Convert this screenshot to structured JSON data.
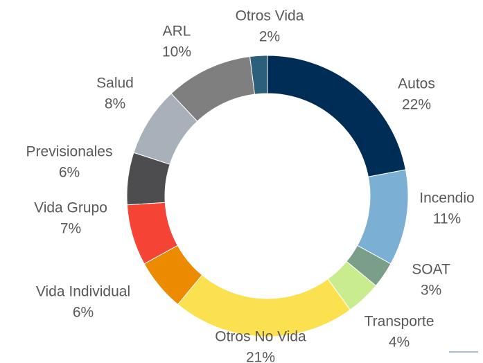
{
  "chart_data": {
    "type": "donut",
    "categories": [
      "Autos",
      "Incendio",
      "SOAT",
      "Transporte",
      "Otros No Vida",
      "Vida Individual",
      "Vida Grupo",
      "Previsionales",
      "Salud",
      "ARL",
      "Otros Vida"
    ],
    "values": [
      22,
      11,
      3,
      4,
      21,
      6,
      7,
      6,
      8,
      10,
      2
    ],
    "value_labels": [
      "22%",
      "11%",
      "3%",
      "4%",
      "21%",
      "6%",
      "7%",
      "6%",
      "8%",
      "10%",
      "2%"
    ],
    "colors": [
      "#002d56",
      "#7bafd4",
      "#7a9e8a",
      "#c9ec8e",
      "#fbe04f",
      "#ec8a00",
      "#f54336",
      "#4d4d4f",
      "#a8b1b9",
      "#7f7f7f",
      "#2c5f7a"
    ]
  }
}
